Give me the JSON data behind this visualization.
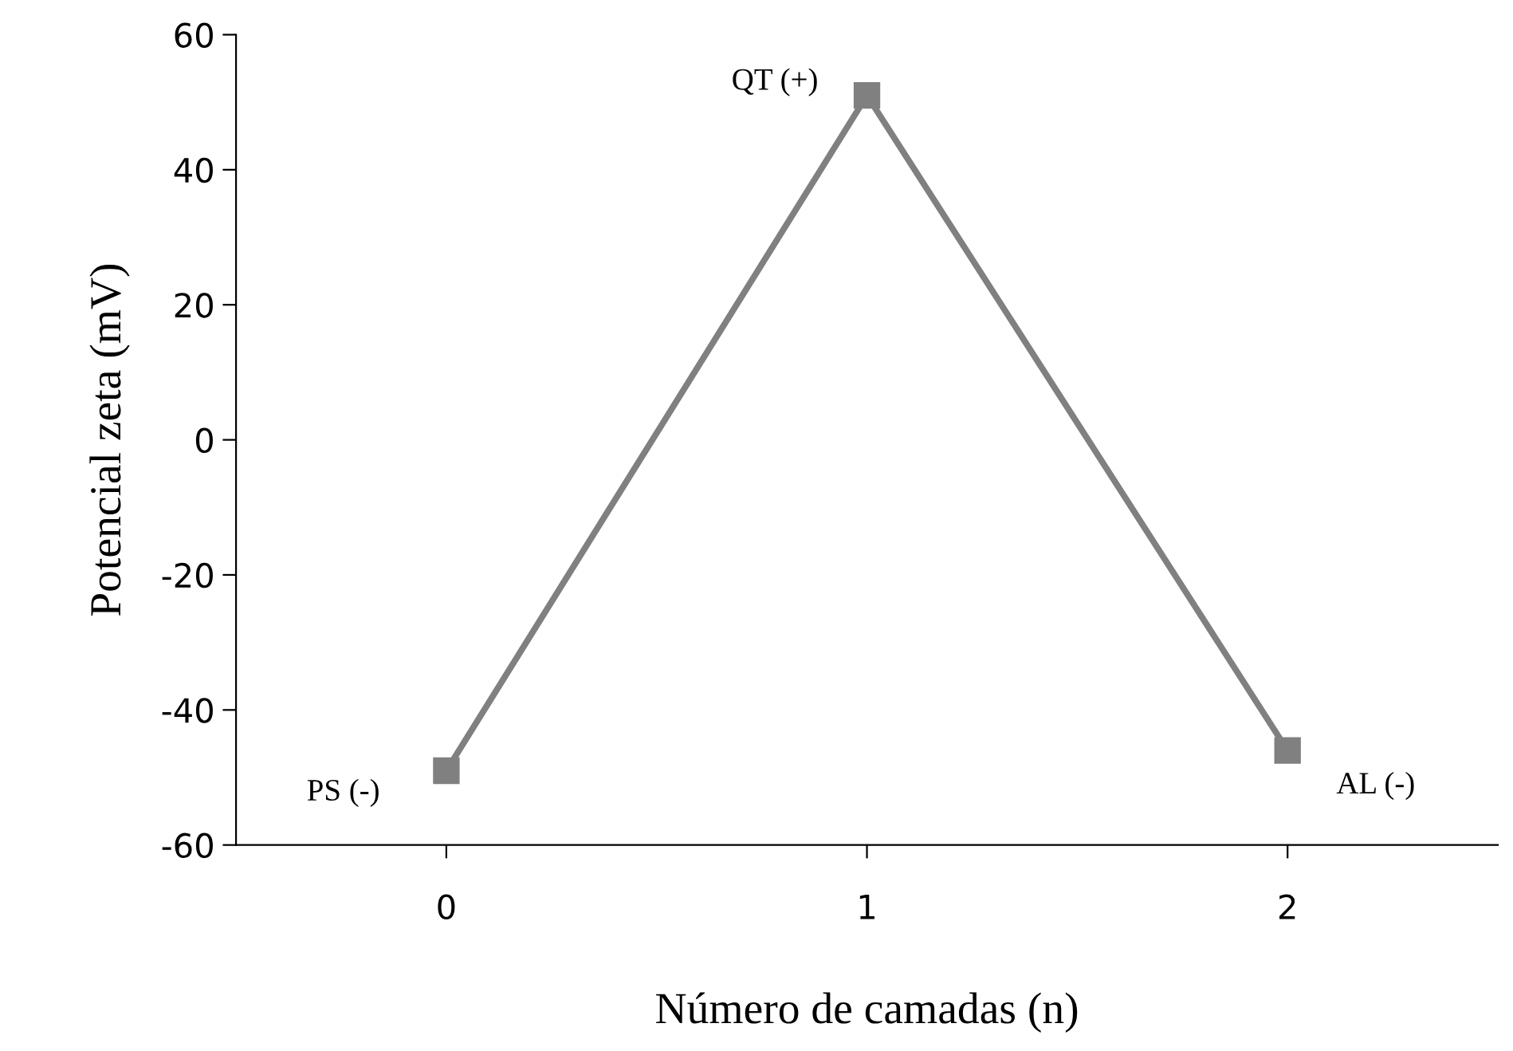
{
  "chart_data": {
    "type": "line",
    "xlabel": "Número de camadas (n)",
    "ylabel": "Potencial zeta (mV)",
    "x": [
      0,
      1,
      2
    ],
    "series": [
      {
        "color": "#808080",
        "values": [
          -49,
          51,
          -46
        ]
      }
    ],
    "marker": "square",
    "line_style": "solid",
    "grid": false,
    "legend": false,
    "xlim": [
      -0.5,
      2.5
    ],
    "xticks": [
      0,
      1,
      2
    ],
    "ylim": [
      -60,
      60
    ],
    "yticks": [
      -60,
      -40,
      -20,
      0,
      20,
      40,
      60
    ],
    "annotations": [
      {
        "text": "PS (-)",
        "x": 0,
        "y": -49
      },
      {
        "text": "QT (+)",
        "x": 1,
        "y": 51
      },
      {
        "text": "AL (-)",
        "x": 2,
        "y": -46
      }
    ]
  }
}
